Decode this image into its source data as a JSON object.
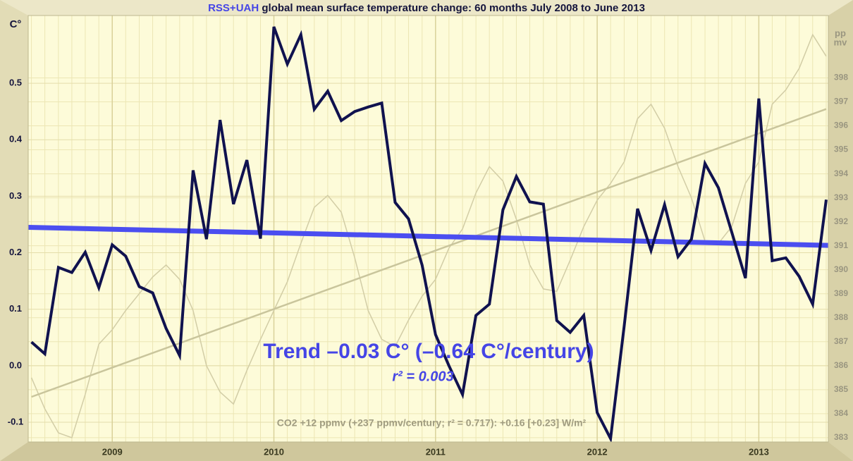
{
  "chart_data": {
    "type": "line",
    "title": {
      "source": "RSS+UAH",
      "text": "global mean surface temperature change: 60 months July 2008 to June 2013"
    },
    "y_label": "C°",
    "y2_label": [
      "pp",
      "mv"
    ],
    "annotations": {
      "trend": "Trend –0.03 C° (–0.64 C°/century)",
      "r2": "r² = 0.003",
      "co2": "CO2 +12 ppmv (+237 ppmv/century; r² = 0.717): +0.16 [+0.23] W/m²"
    },
    "x": [
      2008.5,
      2008.583,
      2008.667,
      2008.75,
      2008.833,
      2008.917,
      2009,
      2009.083,
      2009.167,
      2009.25,
      2009.333,
      2009.417,
      2009.5,
      2009.583,
      2009.667,
      2009.75,
      2009.833,
      2009.917,
      2010,
      2010.083,
      2010.167,
      2010.25,
      2010.333,
      2010.417,
      2010.5,
      2010.583,
      2010.667,
      2010.75,
      2010.833,
      2010.917,
      2011,
      2011.083,
      2011.167,
      2011.25,
      2011.333,
      2011.417,
      2011.5,
      2011.583,
      2011.667,
      2011.75,
      2011.833,
      2011.917,
      2012,
      2012.083,
      2012.167,
      2012.25,
      2012.333,
      2012.417,
      2012.5,
      2012.583,
      2012.667,
      2012.75,
      2012.833,
      2012.917,
      2013,
      2013.083,
      2013.167,
      2013.25,
      2013.333,
      2013.417
    ],
    "xlim": [
      2008.48,
      2013.43
    ],
    "xticks": [
      2009,
      2010,
      2011,
      2012,
      2013
    ],
    "ylim": [
      -0.135,
      0.62
    ],
    "yticks": [
      {
        "value": -0.1,
        "label": "-0.1"
      },
      {
        "value": 0,
        "label": "0.0"
      },
      0.1,
      0.2,
      0.3,
      0.4,
      0.5
    ],
    "y2lim": [
      382.82,
      400.6
    ],
    "y2ticks": [
      383,
      384,
      385,
      386,
      387,
      388,
      389,
      390,
      391,
      392,
      393,
      394,
      395,
      396,
      397,
      398
    ],
    "series": [
      {
        "color": "#d2cda6",
        "axis": "y2",
        "width": 1.5,
        "values": [
          385.5,
          384.2,
          383.2,
          383.0,
          384.8,
          386.9,
          387.5,
          388.3,
          389.0,
          389.7,
          390.2,
          389.6,
          388.3,
          386.0,
          384.9,
          384.4,
          385.8,
          387.1,
          388.3,
          389.5,
          391.1,
          392.6,
          393.1,
          392.4,
          390.5,
          388.3,
          387.1,
          386.8,
          387.9,
          388.9,
          389.6,
          390.9,
          391.7,
          393.2,
          394.3,
          393.7,
          392.1,
          390.2,
          389.2,
          389.1,
          390.4,
          391.8,
          392.9,
          393.6,
          394.5,
          396.3,
          396.9,
          395.9,
          394.3,
          393.0,
          391.2,
          391.1,
          391.8,
          393.6,
          394.5,
          396.9,
          397.5,
          398.4,
          399.8,
          398.9
        ]
      },
      {
        "color": "#c9c59c",
        "axis": "y2",
        "width": 2.5,
        "x": [
          2008.5,
          2013.417
        ],
        "values": [
          384.7,
          396.7
        ]
      },
      {
        "color": "#4b4ef0",
        "axis": "y",
        "width": 7,
        "x": [
          2008.48,
          2013.43
        ],
        "values": [
          0.245,
          0.213
        ]
      },
      {
        "color": "#10124f",
        "axis": "y",
        "width": 4,
        "values": [
          0.042,
          0.021,
          0.174,
          0.165,
          0.201,
          0.138,
          0.214,
          0.194,
          0.14,
          0.129,
          0.066,
          0.018,
          0.346,
          0.224,
          0.435,
          0.286,
          0.364,
          0.225,
          0.6,
          0.534,
          0.586,
          0.454,
          0.486,
          0.434,
          0.45,
          0.458,
          0.465,
          0.289,
          0.26,
          0.178,
          0.055,
          0.0,
          -0.051,
          0.089,
          0.109,
          0.276,
          0.335,
          0.29,
          0.286,
          0.08,
          0.059,
          0.089,
          -0.083,
          -0.129,
          0.07,
          0.278,
          0.204,
          0.285,
          0.193,
          0.224,
          0.358,
          0.315,
          0.236,
          0.155,
          0.473,
          0.186,
          0.191,
          0.158,
          0.109,
          0.294
        ]
      }
    ],
    "grid": true
  }
}
